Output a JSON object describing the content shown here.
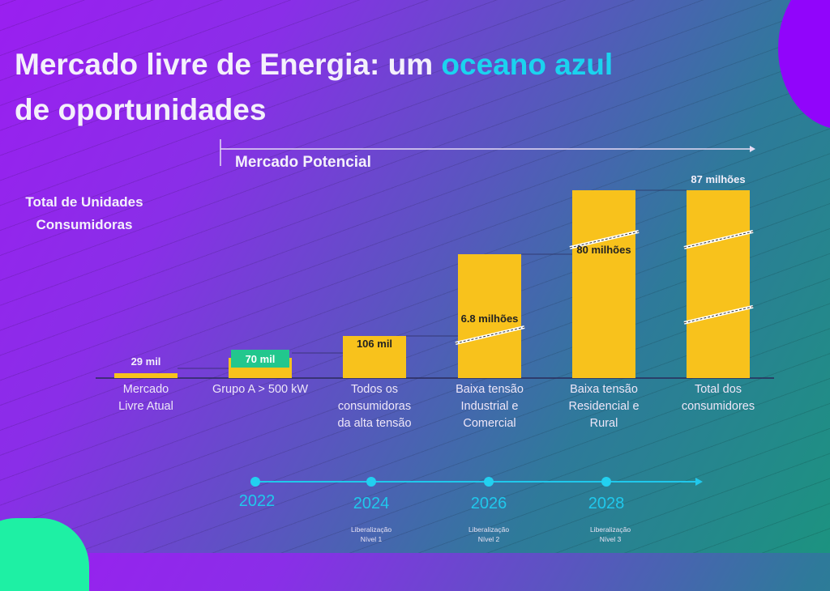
{
  "title": {
    "part1": "Mercado livre de Energia: um ",
    "accent": "oceano azul",
    "part2": "de oportunidades"
  },
  "mercado_potencial_label": "Mercado Potencial",
  "y_axis_label_line1": "Total de Unidades",
  "y_axis_label_line2": "Consumidoras",
  "colors": {
    "bar": "#f8c21c",
    "highlight_box": "#22c78d",
    "accent": "#1bd3ef",
    "timeline": "#20c8ec"
  },
  "chart_data": {
    "type": "bar",
    "title": "Total de Unidades Consumidoras",
    "ylabel": "Total de Unidades Consumidoras",
    "scale": "broken (axis breaks shown on bars)",
    "categories": [
      [
        "Mercado",
        "Livre Atual"
      ],
      [
        "Grupo A > 500 kW"
      ],
      [
        "Todos os",
        "consumidoras",
        "da alta tensão"
      ],
      [
        "Baixa tensão",
        "Industrial e",
        "Comercial"
      ],
      [
        "Baixa tensão",
        "Residencial e",
        "Rural"
      ],
      [
        "Total dos",
        "consumidores"
      ]
    ],
    "values": [
      29000,
      70000,
      106000,
      6800000,
      80000000,
      87000000
    ],
    "value_labels": [
      "29 mil",
      "70 mil",
      "106 mil",
      "6.8 milhões",
      "80 milhões",
      "87 milhões"
    ],
    "axis_breaks_per_bar": [
      0,
      0,
      0,
      1,
      1,
      2
    ],
    "highlighted_label_index": 1,
    "annotation": "Mercado Potencial"
  },
  "timeline": [
    {
      "year": "2022",
      "note1": "",
      "note2": ""
    },
    {
      "year": "2024",
      "note1": "Liberalização",
      "note2": "Nível 1"
    },
    {
      "year": "2026",
      "note1": "Liberalização",
      "note2": "Nível 2"
    },
    {
      "year": "2028",
      "note1": "Liberalização",
      "note2": "Nível 3"
    }
  ]
}
